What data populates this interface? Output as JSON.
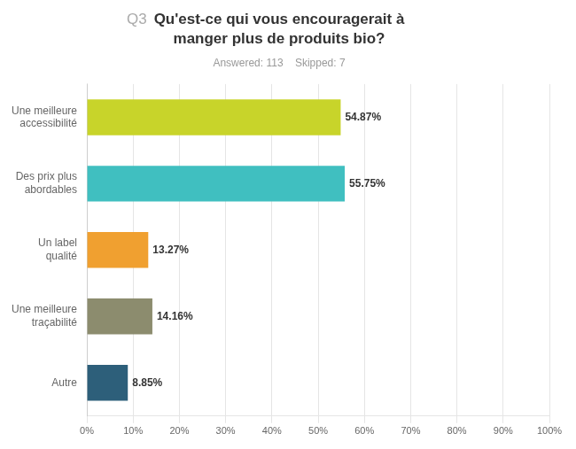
{
  "chart_data": {
    "type": "bar",
    "orientation": "horizontal",
    "title": "Qu'est-ce qui vous encouragerait à\nmanger plus de produits bio?",
    "subtitle": "Answered: 113    Skipped: 7",
    "annotations": [
      {
        "text": "Q3"
      }
    ],
    "categories": [
      "Autre",
      "Une meilleure\ntraçabilité",
      "Un label\nqualité",
      "Des prix plus\nabordables",
      "Une meilleure\naccessibilité"
    ],
    "values": [
      8.85,
      14.16,
      13.27,
      55.75,
      54.87
    ],
    "value_labels": [
      "8.85%",
      "14.16%",
      "13.27%",
      "55.75%",
      "54.87%"
    ],
    "data_labels": true,
    "colors": [
      "#2d5f7a",
      "#8c8c6e",
      "#f0a030",
      "#40bfc0",
      "#c8d42a"
    ],
    "xlim": [
      0,
      100
    ],
    "xticks": [
      {
        "value": 0,
        "label": "0%"
      },
      {
        "value": 10,
        "label": "10%"
      },
      {
        "value": 20,
        "label": "20%"
      },
      {
        "value": 30,
        "label": "30%"
      },
      {
        "value": 40,
        "label": "40%"
      },
      {
        "value": 50,
        "label": "50%"
      },
      {
        "value": 60,
        "label": "60%"
      },
      {
        "value": 70,
        "label": "70%"
      },
      {
        "value": 80,
        "label": "80%"
      },
      {
        "value": 90,
        "label": "90%"
      },
      {
        "value": 100,
        "label": "100%"
      }
    ],
    "grid": true,
    "legend": false
  }
}
